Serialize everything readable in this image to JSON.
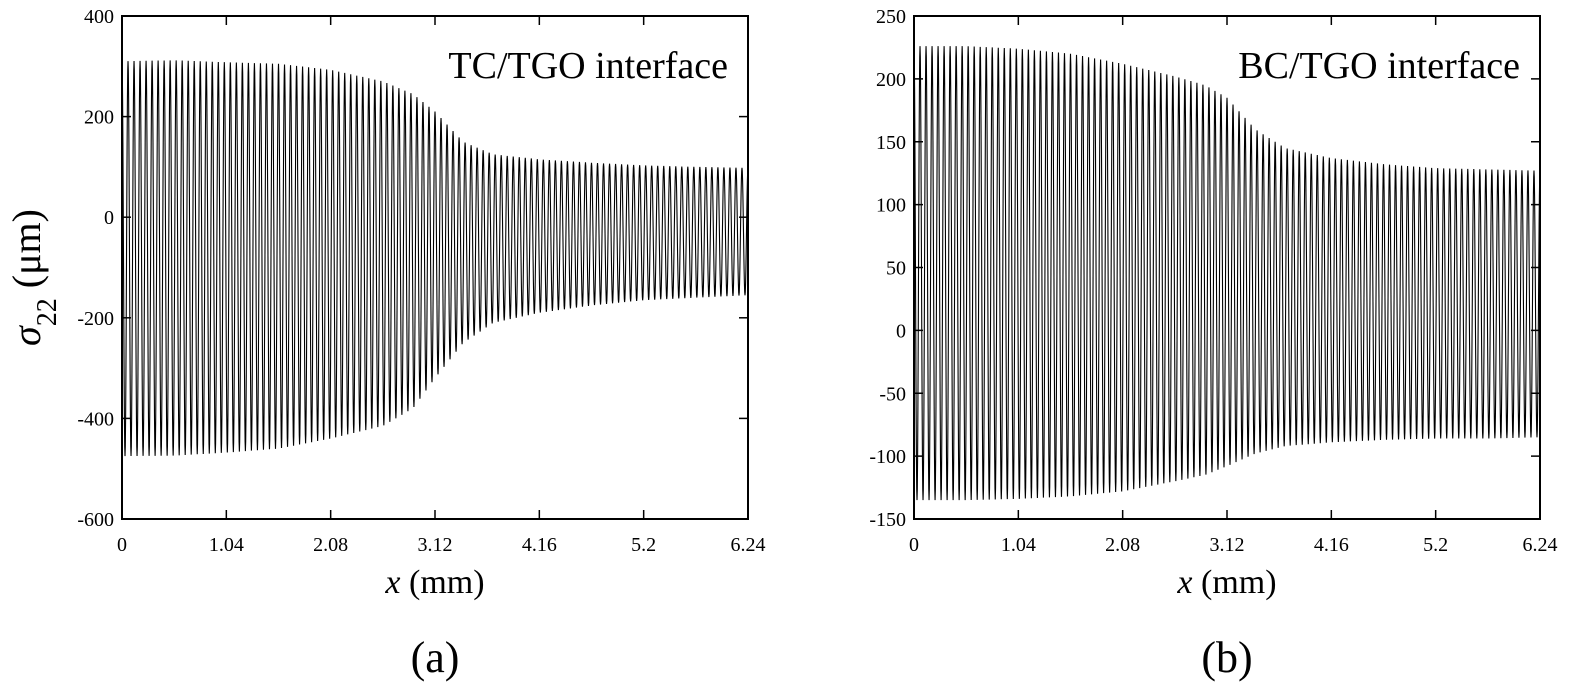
{
  "chart_data": [
    {
      "type": "line",
      "panel_label": "(a)",
      "annotation": "TC/TGO interface",
      "xlabel_var": "x",
      "xlabel_unit": " (mm)",
      "ylabel_var": "σ",
      "ylabel_sub": "22",
      "ylabel_unit": " (μm)",
      "xlim": [
        0,
        6.24
      ],
      "ylim": [
        -600,
        400
      ],
      "xticks": [
        0,
        1.04,
        2.08,
        3.12,
        4.16,
        5.2,
        6.24
      ],
      "xtick_labels": [
        "0",
        "1.04",
        "2.08",
        "3.12",
        "4.16",
        "5.2",
        "6.24"
      ],
      "yticks": [
        400,
        200,
        0,
        -200,
        -400,
        -600
      ],
      "ytick_labels": [
        "400",
        "200",
        "0",
        "-200",
        "-400",
        "-600"
      ],
      "oscillation_cycles": 104,
      "series": [
        {
          "x": [
            0,
            0.52,
            1.04,
            1.56,
            2.08,
            2.6,
            2.9,
            3.12,
            3.4,
            3.7,
            4.16,
            4.7,
            5.2,
            5.72,
            6.24
          ],
          "upper": [
            310,
            312,
            308,
            305,
            293,
            270,
            245,
            210,
            150,
            125,
            115,
            108,
            103,
            100,
            98
          ],
          "lower": [
            -475,
            -474,
            -468,
            -460,
            -440,
            -415,
            -380,
            -320,
            -250,
            -210,
            -190,
            -175,
            -165,
            -160,
            -155
          ]
        }
      ]
    },
    {
      "type": "line",
      "panel_label": "(b)",
      "annotation": "BC/TGO interface",
      "xlabel_var": "x",
      "xlabel_unit": " (mm)",
      "xlim": [
        0,
        6.24
      ],
      "ylim": [
        -150,
        250
      ],
      "xticks": [
        0,
        1.04,
        2.08,
        3.12,
        4.16,
        5.2,
        6.24
      ],
      "xtick_labels": [
        "0",
        "1.04",
        "2.08",
        "3.12",
        "4.16",
        "5.2",
        "6.24"
      ],
      "yticks": [
        250,
        200,
        150,
        100,
        50,
        0,
        -50,
        -100,
        -150
      ],
      "ytick_labels": [
        "250",
        "200",
        "150",
        "100",
        "50",
        "0",
        "-50",
        "-100",
        "-150"
      ],
      "oscillation_cycles": 104,
      "series": [
        {
          "x": [
            0,
            0.52,
            1.04,
            1.56,
            2.08,
            2.6,
            2.9,
            3.12,
            3.4,
            3.7,
            4.16,
            4.7,
            5.2,
            5.72,
            6.24
          ],
          "upper": [
            226,
            226,
            224,
            220,
            212,
            202,
            195,
            185,
            160,
            145,
            137,
            132,
            129,
            128,
            127
          ],
          "lower": [
            -135,
            -135,
            -134,
            -132,
            -128,
            -120,
            -115,
            -108,
            -98,
            -92,
            -89,
            -87,
            -86,
            -86,
            -85
          ]
        }
      ]
    }
  ]
}
